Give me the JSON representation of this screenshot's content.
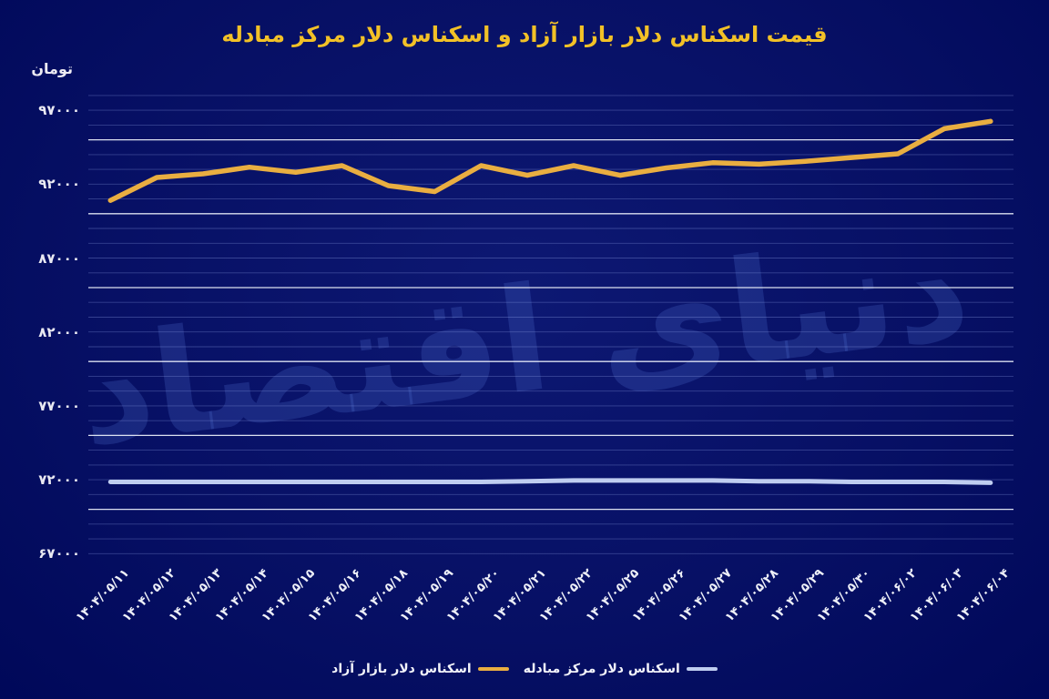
{
  "title": "قیمت اسکناس دلار بازار آزاد و اسکناس دلار مرکز مبادله",
  "y_axis_unit": "تومان",
  "watermark": "دنیای اقتصاد",
  "colors": {
    "background": "#071065",
    "title": "#f2c127",
    "axis_text": "#e9e9f2",
    "grid_minor": "rgba(145,165,235,0.33)",
    "grid_major": "rgba(238,242,252,0.92)",
    "free_market_line": "#e9ae41",
    "exchange_center_line": "#bfcdf0",
    "watermark": "rgba(85,115,215,0.24)"
  },
  "chart_data": {
    "type": "line",
    "title": "قیمت اسکناس دلار بازار آزاد و اسکناس دلار مرکز مبادله",
    "xlabel": "",
    "ylabel": "تومان",
    "ylim": [
      67000,
      98000
    ],
    "grid": "horizontal; minor lines every 1000, bright major lines every 5000",
    "legend_position": "bottom-center",
    "y_ticks": [
      97000,
      92000,
      87000,
      82000,
      77000,
      72000,
      67000
    ],
    "y_tick_labels": [
      "۹۷۰۰۰",
      "۹۲۰۰۰",
      "۸۷۰۰۰",
      "۸۲۰۰۰",
      "۷۷۰۰۰",
      "۷۲۰۰۰",
      "۶۷۰۰۰"
    ],
    "categories": [
      "۱۴۰۴/۰۵/۱۱",
      "۱۴۰۴/۰۵/۱۲",
      "۱۴۰۴/۰۵/۱۳",
      "۱۴۰۴/۰۵/۱۴",
      "۱۴۰۴/۰۵/۱۵",
      "۱۴۰۴/۰۵/۱۶",
      "۱۴۰۴/۰۵/۱۸",
      "۱۴۰۴/۰۵/۱۹",
      "۱۴۰۴/۰۵/۲۰",
      "۱۴۰۴/۰۵/۲۱",
      "۱۴۰۴/۰۵/۲۲",
      "۱۴۰۴/۰۵/۲۵",
      "۱۴۰۴/۰۵/۲۶",
      "۱۴۰۴/۰۵/۲۷",
      "۱۴۰۴/۰۵/۲۸",
      "۱۴۰۴/۰۵/۲۹",
      "۱۴۰۴/۰۵/۳۰",
      "۱۴۰۴/۰۶/۰۲",
      "۱۴۰۴/۰۶/۰۳",
      "۱۴۰۴/۰۶/۰۴"
    ],
    "series": [
      {
        "name": "اسکناس دلار بازار آزاد",
        "color": "#e9ae41",
        "values": [
          90900,
          92450,
          92700,
          93150,
          92800,
          93250,
          91900,
          91500,
          93250,
          92600,
          93250,
          92600,
          93100,
          93450,
          93350,
          93550,
          93800,
          94050,
          95750,
          96250
        ]
      },
      {
        "name": "اسکناس دلار مرکز مبادله",
        "color": "#bfcdf0",
        "values": [
          71850,
          71850,
          71850,
          71850,
          71850,
          71850,
          71850,
          71850,
          71850,
          71900,
          71950,
          71950,
          71950,
          71950,
          71900,
          71900,
          71850,
          71850,
          71850,
          71800
        ]
      }
    ]
  }
}
